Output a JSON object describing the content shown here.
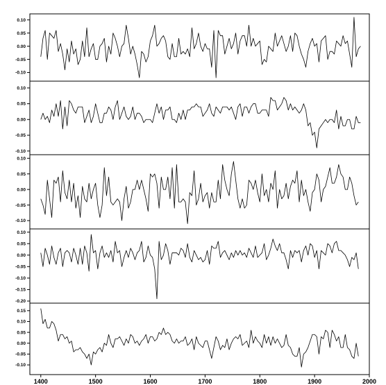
{
  "chart_data": {
    "type": "line",
    "title": "",
    "xlabel": "",
    "xlim": [
      1380,
      2000
    ],
    "x_ticks": [
      1400,
      1500,
      1600,
      1700,
      1800,
      1900,
      2000
    ],
    "x_tick_labels": [
      "1400",
      "1500",
      "1600",
      "1700",
      "1800",
      "1900",
      "2000"
    ],
    "x_range": [
      1400,
      1980
    ],
    "x_step": 4,
    "grid": false,
    "legend": "none",
    "colors": {
      "line": "#000000",
      "frame": "#000000",
      "background": "#ffffff"
    },
    "panels": [
      {
        "ylim": [
          -0.125,
          0.115
        ],
        "y_ticks": [
          -0.1,
          -0.05,
          0.0,
          0.05,
          0.1
        ],
        "y_tick_labels": [
          "-0.10",
          "-0.05",
          "0.00",
          "0.05",
          "0.10"
        ],
        "series": [
          {
            "values": [
              -0.04,
              0.03,
              0.06,
              -0.05,
              0.05,
              0.04,
              0.03,
              0.06,
              -0.02,
              0.01,
              -0.03,
              -0.09,
              -0.01,
              -0.06,
              0.02,
              -0.03,
              -0.01,
              -0.07,
              -0.05,
              0.02,
              -0.04,
              0.07,
              -0.04,
              -0.01,
              0.01,
              -0.05,
              -0.05,
              0.0,
              0.01,
              0.03,
              -0.06,
              0.0,
              -0.03,
              0.05,
              0.03,
              0.0,
              -0.04,
              0.0,
              0.01,
              0.08,
              0.03,
              -0.03,
              0.0,
              -0.03,
              -0.07,
              -0.12,
              -0.02,
              -0.03,
              -0.06,
              -0.04,
              0.02,
              0.04,
              0.08,
              0.0,
              0.01,
              0.03,
              0.04,
              0.02,
              -0.04,
              -0.05,
              0.01,
              -0.04,
              -0.04,
              0.03,
              -0.03,
              -0.02,
              -0.03,
              -0.01,
              -0.04,
              0.07,
              -0.01,
              0.01,
              0.05,
              0.0,
              -0.02,
              0.01,
              -0.01,
              -0.01,
              -0.08,
              0.06,
              -0.12,
              0.06,
              0.04,
              0.04,
              -0.03,
              0.0,
              0.03,
              -0.01,
              0.01,
              0.05,
              -0.03,
              0.02,
              0.04,
              0.04,
              0.0,
              0.08,
              0.0,
              0.03,
              0.0,
              0.01,
              0.02,
              -0.07,
              -0.05,
              -0.06,
              0.0,
              -0.01,
              -0.02,
              0.05,
              0.0,
              0.02,
              0.04,
              0.01,
              -0.02,
              0.0,
              0.04,
              -0.02,
              0.05,
              0.04,
              0.0,
              -0.03,
              -0.05,
              -0.08,
              -0.02,
              0.01,
              0.03,
              0.0,
              0.01,
              -0.06,
              0.02,
              0.03,
              0.04,
              -0.05,
              -0.02,
              -0.02,
              -0.03,
              0.02,
              0.01,
              0.0,
              0.04,
              0.01,
              0.02,
              -0.03,
              -0.08,
              0.11,
              -0.04,
              -0.01,
              0.0
            ]
          }
        ]
      },
      {
        "ylim": [
          -0.105,
          0.115
        ],
        "y_ticks": [
          -0.1,
          -0.05,
          0.0,
          0.05,
          0.1
        ],
        "y_tick_labels": [
          "-0.10",
          "-0.05",
          "0.00",
          "0.05",
          "0.10"
        ],
        "series": [
          {
            "values": [
              0.0,
              0.02,
              0.0,
              0.01,
              -0.01,
              0.03,
              0.01,
              0.05,
              0.01,
              0.06,
              -0.03,
              0.04,
              -0.02,
              0.06,
              0.05,
              0.03,
              0.02,
              0.04,
              0.04,
              0.04,
              -0.01,
              0.01,
              0.03,
              -0.01,
              0.01,
              0.05,
              0.02,
              -0.01,
              -0.01,
              0.02,
              0.02,
              0.04,
              0.03,
              0.0,
              0.04,
              0.06,
              0.0,
              0.02,
              0.04,
              0.01,
              0.0,
              0.01,
              0.04,
              0.0,
              0.02,
              0.02,
              0.01,
              -0.01,
              0.0,
              0.0,
              0.0,
              -0.01,
              0.02,
              0.05,
              0.02,
              0.04,
              0.0,
              0.03,
              0.03,
              0.04,
              0.0,
              0.0,
              -0.01,
              0.02,
              0.0,
              0.03,
              0.0,
              0.03,
              0.03,
              0.04,
              0.04,
              0.05,
              0.04,
              0.04,
              0.01,
              0.02,
              0.03,
              0.05,
              0.02,
              0.01,
              0.04,
              0.03,
              0.02,
              0.04,
              0.04,
              0.04,
              0.03,
              0.04,
              0.02,
              0.0,
              0.04,
              0.05,
              0.01,
              0.04,
              0.04,
              0.02,
              0.04,
              0.05,
              0.05,
              0.02,
              0.02,
              0.03,
              0.03,
              0.03,
              0.01,
              0.07,
              0.06,
              0.06,
              0.03,
              0.04,
              0.05,
              0.07,
              0.06,
              0.03,
              0.05,
              0.03,
              0.04,
              0.03,
              0.02,
              0.03,
              0.05,
              0.03,
              -0.02,
              -0.01,
              -0.05,
              -0.04,
              -0.09,
              -0.03,
              -0.02,
              -0.01,
              0.0,
              -0.01,
              0.0,
              0.0,
              -0.01,
              0.03,
              -0.03,
              0.01,
              -0.02,
              -0.02,
              0.0,
              0.0,
              -0.03,
              -0.03,
              0.01,
              -0.01,
              -0.01
            ]
          }
        ]
      },
      {
        "ylim": [
          -0.12,
          0.105
        ],
        "y_ticks": [
          -0.1,
          -0.05,
          0.0,
          0.05,
          0.1
        ],
        "y_tick_labels": [
          "-0.10",
          "-0.05",
          "0.00",
          "0.05",
          "0.10"
        ],
        "series": [
          {
            "values": [
              -0.03,
              -0.05,
              -0.08,
              0.03,
              -0.03,
              -0.09,
              0.03,
              0.02,
              0.04,
              -0.04,
              0.06,
              -0.01,
              -0.03,
              0.03,
              -0.04,
              0.02,
              -0.06,
              -0.02,
              -0.09,
              0.01,
              -0.03,
              -0.04,
              0.02,
              -0.03,
              0.0,
              0.02,
              -0.05,
              -0.09,
              -0.05,
              0.07,
              -0.02,
              0.04,
              -0.04,
              -0.05,
              -0.04,
              -0.03,
              -0.04,
              -0.1,
              -0.03,
              0.01,
              -0.06,
              -0.04,
              0.0,
              0.0,
              0.03,
              0.0,
              0.03,
              0.0,
              -0.03,
              -0.07,
              0.05,
              0.04,
              0.05,
              0.02,
              -0.06,
              0.04,
              0.0,
              0.0,
              0.04,
              -0.03,
              0.07,
              -0.06,
              0.08,
              -0.04,
              -0.04,
              -0.03,
              -0.04,
              -0.11,
              -0.01,
              -0.02,
              0.06,
              -0.05,
              -0.03,
              0.02,
              -0.04,
              -0.02,
              -0.01,
              -0.06,
              -0.01,
              -0.04,
              -0.04,
              0.03,
              -0.03,
              0.08,
              0.03,
              0.0,
              -0.02,
              0.05,
              0.09,
              0.03,
              -0.03,
              -0.06,
              -0.03,
              -0.06,
              -0.05,
              0.03,
              0.02,
              0.0,
              0.03,
              -0.01,
              -0.04,
              0.05,
              -0.02,
              0.0,
              -0.04,
              0.02,
              0.0,
              0.06,
              -0.06,
              0.0,
              -0.03,
              -0.02,
              0.02,
              -0.03,
              0.01,
              0.03,
              0.02,
              0.06,
              -0.04,
              0.03,
              -0.02,
              0.0,
              -0.04,
              -0.07,
              -0.01,
              0.0,
              0.05,
              0.03,
              -0.04,
              0.0,
              0.01,
              0.04,
              0.07,
              0.02,
              0.02,
              0.04,
              0.08,
              0.05,
              0.04,
              0.0,
              0.0,
              0.04,
              0.02,
              -0.02,
              -0.05,
              -0.04
            ]
          }
        ]
      },
      {
        "ylim": [
          -0.2,
          0.105
        ],
        "y_ticks": [
          -0.2,
          -0.15,
          -0.1,
          -0.05,
          0.0,
          0.05,
          0.1
        ],
        "y_tick_labels": [
          "-0.20",
          "-0.15",
          "-0.10",
          "-0.05",
          "0.00",
          "0.05",
          "0.10"
        ],
        "series": [
          {
            "values": [
              0.01,
              -0.05,
              0.03,
              0.0,
              -0.04,
              0.04,
              -0.01,
              -0.04,
              0.01,
              0.03,
              -0.05,
              0.01,
              0.02,
              0.01,
              -0.03,
              0.03,
              0.0,
              -0.04,
              0.03,
              -0.04,
              0.04,
              0.01,
              -0.07,
              0.09,
              0.01,
              0.02,
              -0.06,
              0.01,
              0.04,
              -0.01,
              0.01,
              -0.01,
              0.02,
              -0.03,
              0.06,
              0.01,
              0.02,
              -0.05,
              -0.01,
              0.02,
              -0.01,
              0.03,
              0.01,
              -0.02,
              0.01,
              0.02,
              0.06,
              -0.03,
              -0.01,
              0.04,
              0.0,
              -0.01,
              -0.06,
              -0.19,
              0.06,
              -0.02,
              0.0,
              0.05,
              0.02,
              -0.04,
              0.01,
              0.01,
              0.01,
              0.0,
              0.03,
              0.02,
              -0.01,
              0.05,
              -0.01,
              -0.03,
              0.02,
              0.0,
              -0.02,
              -0.01,
              -0.03,
              -0.02,
              0.02,
              -0.04,
              0.04,
              0.03,
              0.03,
              0.06,
              -0.01,
              0.01,
              0.02,
              0.0,
              -0.02,
              0.01,
              -0.01,
              0.02,
              0.0,
              0.02,
              0.0,
              0.01,
              -0.01,
              0.03,
              0.01,
              -0.01,
              0.04,
              -0.01,
              0.0,
              0.01,
              0.05,
              -0.02,
              0.0,
              0.03,
              0.07,
              0.04,
              0.02,
              0.05,
              0.01,
              0.01,
              -0.02,
              -0.06,
              0.02,
              -0.01,
              0.02,
              0.01,
              0.02,
              -0.03,
              0.02,
              0.04,
              0.0,
              0.05,
              0.04,
              -0.01,
              0.02,
              -0.06,
              0.02,
              0.01,
              0.0,
              0.05,
              0.04,
              0.01,
              0.05,
              0.06,
              0.02,
              0.02,
              0.01,
              0.0,
              -0.02,
              -0.05,
              -0.01,
              -0.02,
              0.01,
              -0.06
            ]
          }
        ]
      },
      {
        "ylim": [
          -0.135,
          0.175
        ],
        "y_ticks": [
          -0.1,
          -0.05,
          0.0,
          0.05,
          0.1,
          0.15
        ],
        "y_tick_labels": [
          "-0.10",
          "-0.05",
          "0.00",
          "0.05",
          "0.10",
          "0.15"
        ],
        "series": [
          {
            "values": [
              0.16,
              0.09,
              0.11,
              0.07,
              0.07,
              0.1,
              0.09,
              0.06,
              0.01,
              0.04,
              0.04,
              0.02,
              0.03,
              0.0,
              0.01,
              -0.04,
              -0.03,
              -0.03,
              -0.02,
              -0.04,
              -0.05,
              -0.07,
              -0.05,
              -0.1,
              -0.04,
              -0.05,
              -0.03,
              -0.02,
              -0.04,
              0.0,
              -0.01,
              0.04,
              0.0,
              -0.02,
              0.02,
              0.02,
              0.03,
              0.01,
              -0.01,
              0.02,
              0.0,
              0.04,
              0.03,
              0.0,
              0.01,
              -0.01,
              0.01,
              0.02,
              0.04,
              0.0,
              0.03,
              0.03,
              0.01,
              0.02,
              0.05,
              0.04,
              0.07,
              0.04,
              0.05,
              0.04,
              0.01,
              0.0,
              0.02,
              0.0,
              0.01,
              0.01,
              0.03,
              -0.01,
              0.0,
              0.02,
              -0.03,
              0.03,
              0.0,
              -0.01,
              -0.02,
              0.01,
              0.01,
              -0.03,
              -0.07,
              -0.02,
              0.03,
              0.01,
              -0.03,
              -0.01,
              -0.02,
              0.02,
              -0.03,
              0.0,
              0.02,
              0.03,
              0.02,
              0.04,
              -0.01,
              0.0,
              0.01,
              -0.02,
              0.06,
              0.0,
              0.03,
              0.01,
              0.0,
              -0.02,
              0.04,
              0.0,
              0.03,
              -0.01,
              0.03,
              0.0,
              0.02,
              0.0,
              -0.02,
              -0.01,
              0.04,
              -0.01,
              -0.02,
              -0.05,
              -0.06,
              -0.06,
              -0.02,
              -0.11,
              -0.05,
              -0.04,
              -0.02,
              0.01,
              0.04,
              0.04,
              0.03,
              -0.05,
              0.03,
              0.02,
              0.06,
              0.05,
              -0.02,
              0.06,
              0.04,
              0.01,
              0.03,
              -0.02,
              -0.02,
              0.04,
              -0.02,
              -0.03,
              -0.06,
              -0.07,
              0.0,
              -0.06
            ]
          }
        ]
      }
    ]
  }
}
